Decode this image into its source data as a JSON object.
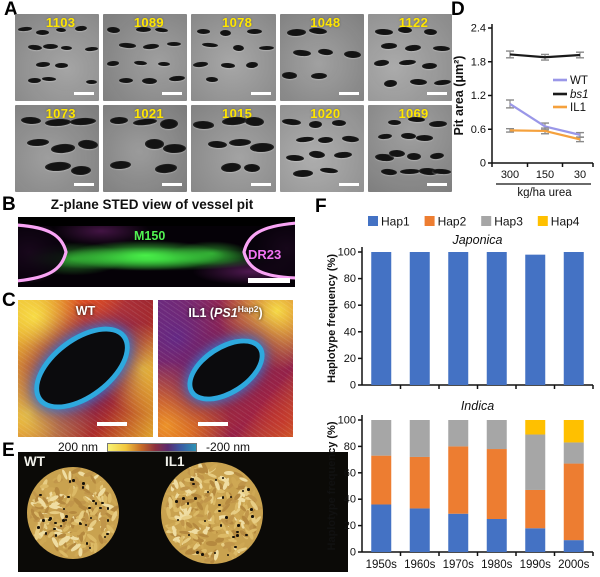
{
  "figure": {
    "panel_labels": {
      "A": "A",
      "B": "B",
      "C": "C",
      "D": "D",
      "E": "E",
      "F": "F"
    }
  },
  "panels": {
    "A": {
      "tiles": [
        {
          "id": "1103"
        },
        {
          "id": "1089"
        },
        {
          "id": "1078"
        },
        {
          "id": "1048"
        },
        {
          "id": "1122"
        },
        {
          "id": "1073"
        },
        {
          "id": "1021"
        },
        {
          "id": "1015"
        },
        {
          "id": "1020"
        },
        {
          "id": "1069"
        }
      ],
      "number_color": "#ffe600"
    },
    "B": {
      "title": "Z-plane STED view of vessel pit",
      "stain_green": "M150",
      "stain_magenta": "DR23",
      "green_color": "#52f252",
      "magenta_color": "#f273f2"
    },
    "C": {
      "left_title": "WT",
      "right_title_prefix": "IL1 (",
      "right_title_gene": "PS1",
      "right_title_sup": "Hap2",
      "right_title_suffix": ")",
      "scale_left": "200 nm",
      "scale_right": "-200 nm"
    },
    "E": {
      "left_label": "WT",
      "right_label": "IL1"
    }
  },
  "chart_data": [
    {
      "panel": "D",
      "type": "line",
      "x_categories": [
        "300",
        "150",
        "30"
      ],
      "xlabel": "kg/ha urea",
      "ylabel": "Pit area (μm²)",
      "ylim": [
        0,
        2.4
      ],
      "yticks": [
        0,
        0.6,
        1.2,
        1.8,
        2.4
      ],
      "legend_position": "right",
      "series": [
        {
          "name": "WT",
          "color": "#9a97e8",
          "italic": false,
          "values": [
            1.05,
            0.65,
            0.5
          ],
          "errors": [
            0.07,
            0.06,
            0.04
          ]
        },
        {
          "name": "bs1",
          "color": "#1a1a1a",
          "italic": true,
          "values": [
            1.93,
            1.88,
            1.92
          ],
          "errors": [
            0.06,
            0.05,
            0.05
          ]
        },
        {
          "name": "IL1",
          "color": "#f5a13d",
          "italic": false,
          "values": [
            0.58,
            0.57,
            0.42
          ],
          "errors": [
            0.03,
            0.05,
            0.04
          ]
        }
      ]
    },
    {
      "panel": "F",
      "type": "stacked-bar",
      "title": "Japonica",
      "categories": [
        "1950s",
        "1960s",
        "1970s",
        "1980s",
        "1990s",
        "2000s"
      ],
      "show_x_labels": false,
      "ylabel": "Haplotype frequency (%)",
      "ylim": [
        0,
        100
      ],
      "yticks": [
        0,
        20,
        40,
        60,
        80,
        100
      ],
      "legend_position": "top",
      "series": [
        {
          "name": "Hap1",
          "color": "#4472c4",
          "values": [
            100,
            100,
            100,
            100,
            98,
            100
          ]
        },
        {
          "name": "Hap2",
          "color": "#ed7d31",
          "values": [
            0,
            0,
            0,
            0,
            0,
            0
          ]
        },
        {
          "name": "Hap3",
          "color": "#a6a6a6",
          "values": [
            0,
            0,
            0,
            0,
            0,
            0
          ]
        },
        {
          "name": "Hap4",
          "color": "#ffc000",
          "values": [
            0,
            0,
            0,
            0,
            0,
            0
          ]
        }
      ]
    },
    {
      "panel": "F",
      "type": "stacked-bar",
      "title": "Indica",
      "categories": [
        "1950s",
        "1960s",
        "1970s",
        "1980s",
        "1990s",
        "2000s"
      ],
      "show_x_labels": true,
      "ylabel": "Haplotype frequency (%)",
      "ylim": [
        0,
        100
      ],
      "yticks": [
        0,
        20,
        40,
        60,
        80,
        100
      ],
      "series": [
        {
          "name": "Hap1",
          "color": "#4472c4",
          "values": [
            36,
            33,
            29,
            25,
            18,
            9
          ]
        },
        {
          "name": "Hap2",
          "color": "#ed7d31",
          "values": [
            37,
            39,
            51,
            53,
            29,
            58
          ]
        },
        {
          "name": "Hap3",
          "color": "#a6a6a6",
          "values": [
            27,
            28,
            20,
            22,
            42,
            16
          ]
        },
        {
          "name": "Hap4",
          "color": "#ffc000",
          "values": [
            0,
            0,
            0,
            0,
            11,
            17
          ]
        }
      ]
    }
  ]
}
